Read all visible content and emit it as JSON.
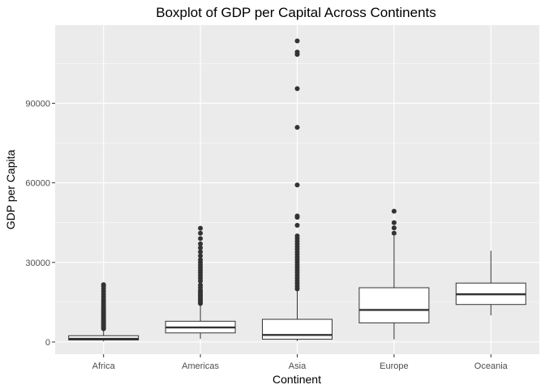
{
  "chart_data": {
    "type": "boxplot",
    "title": "Boxplot of GDP per Capital Across Continents",
    "xlabel": "Continent",
    "ylabel": "GDP per Capita",
    "categories": [
      "Africa",
      "Americas",
      "Asia",
      "Europe",
      "Oceania"
    ],
    "y_ticks": [
      0,
      30000,
      60000,
      90000
    ],
    "y_tick_labels": [
      "0",
      "30000",
      "60000",
      "90000"
    ],
    "ylim": [
      -4000,
      119000
    ],
    "grid": true,
    "legend": "none",
    "colors": {
      "panel": "#ebebeb",
      "grid_major": "#ffffff",
      "box_fill": "#ffffff",
      "box_stroke": "#333333",
      "outlier": "#333333"
    },
    "boxes": [
      {
        "category": "Africa",
        "whisker_low": 241,
        "q1": 761,
        "median": 1192,
        "q3": 2377,
        "whisker_high": 4800,
        "outliers": [
          5000,
          5400,
          5800,
          6200,
          6600,
          7000,
          7400,
          7800,
          8200,
          8600,
          9000,
          9500,
          10000,
          10500,
          11000,
          11500,
          12000,
          12600,
          13200,
          13800,
          14500,
          15200,
          16000,
          17000,
          18000,
          19000,
          20000,
          21000,
          21600
        ]
      },
      {
        "category": "Americas",
        "whisker_low": 1202,
        "q1": 3428,
        "median": 5466,
        "q3": 7830,
        "whisker_high": 14300,
        "outliers": [
          14500,
          15000,
          15500,
          16000,
          16500,
          17000,
          17500,
          18000,
          18500,
          19000,
          19500,
          20500,
          21500,
          23000,
          24000,
          25000,
          26000,
          27000,
          28000,
          29000,
          30000,
          31000,
          32500,
          34000,
          35500,
          37000,
          39000,
          41000,
          42900
        ]
      },
      {
        "category": "Asia",
        "whisker_low": 331,
        "q1": 1057,
        "median": 2647,
        "q3": 8549,
        "whisker_high": 19500,
        "outliers": [
          20000,
          21000,
          22000,
          23000,
          24000,
          25000,
          26000,
          27000,
          28000,
          29000,
          30000,
          31000,
          32000,
          33000,
          34000,
          35000,
          36000,
          37000,
          38000,
          39000,
          40000,
          44000,
          47000,
          47500,
          59200,
          80900,
          95500,
          108400,
          109300,
          113500
        ]
      },
      {
        "category": "Europe",
        "whisker_low": 974,
        "q1": 7213,
        "median": 12082,
        "q3": 20461,
        "whisker_high": 40000,
        "outliers": [
          41000,
          43000,
          45000,
          49300
        ]
      },
      {
        "category": "Oceania",
        "whisker_low": 10040,
        "q1": 14142,
        "median": 17983,
        "q3": 22214,
        "whisker_high": 34400,
        "outliers": []
      }
    ]
  }
}
